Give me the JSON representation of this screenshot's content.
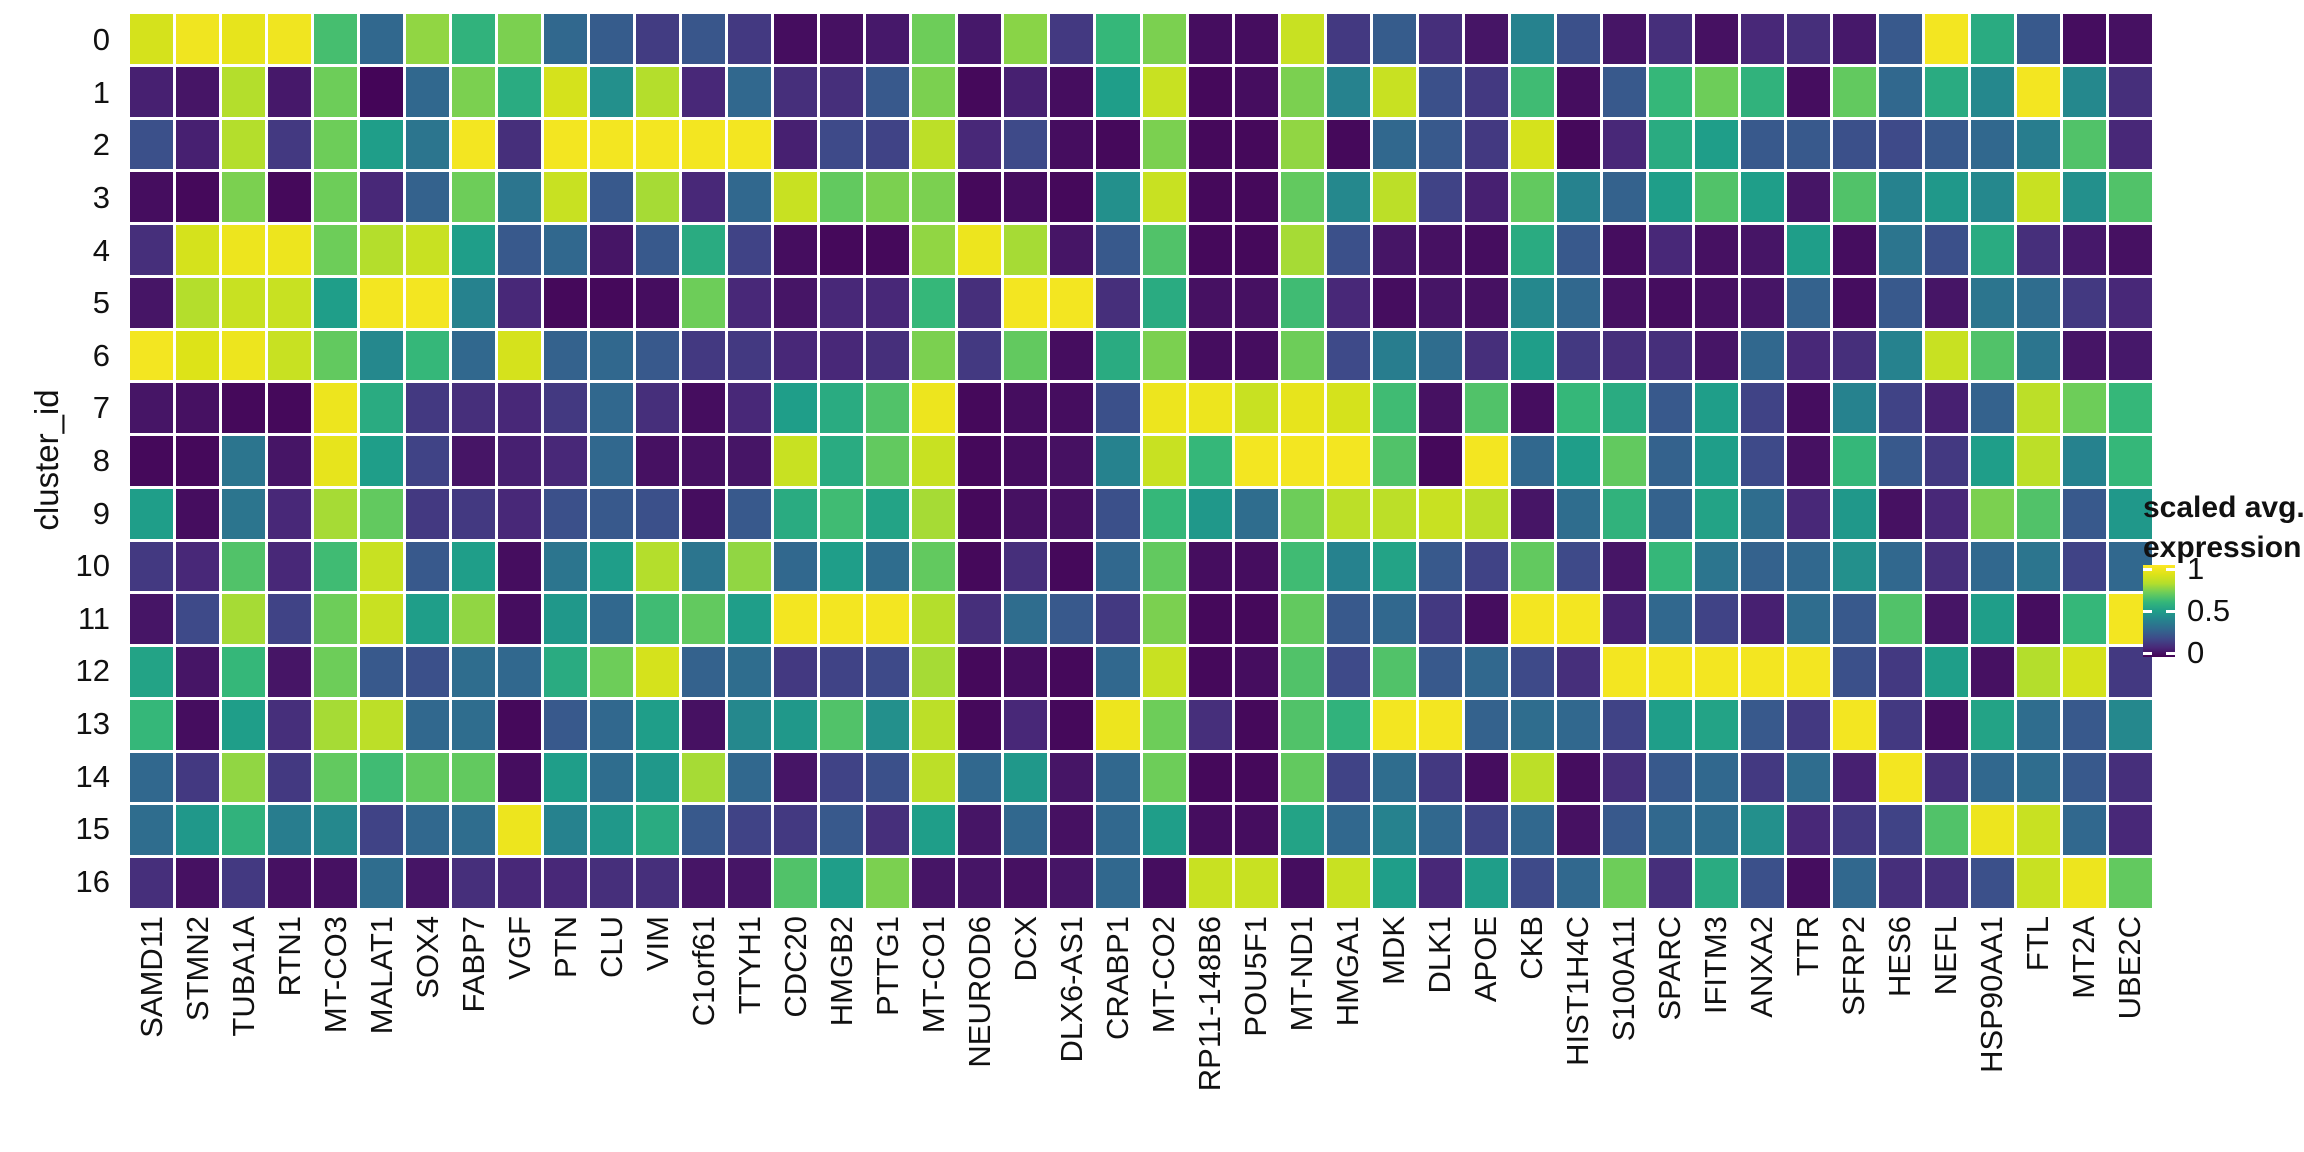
{
  "figure": {
    "background": "#ffffff",
    "text_color": "#111111"
  },
  "chart_data": {
    "type": "heatmap",
    "ylabel": "cluster_id",
    "rows": [
      "0",
      "1",
      "2",
      "3",
      "4",
      "5",
      "6",
      "7",
      "8",
      "9",
      "10",
      "11",
      "12",
      "13",
      "14",
      "15",
      "16"
    ],
    "columns": [
      "SAMD11",
      "STMN2",
      "TUBA1A",
      "RTN1",
      "MT-CO3",
      "MALAT1",
      "SOX4",
      "FABP7",
      "VGF",
      "PTN",
      "CLU",
      "VIM",
      "C1orf61",
      "TTYH1",
      "CDC20",
      "HMGB2",
      "PTTG1",
      "MT-CO1",
      "NEUROD6",
      "DCX",
      "DLX6-AS1",
      "CRABP1",
      "MT-CO2",
      "RP11-148B6",
      "POU5F1",
      "MT-ND1",
      "HMGA1",
      "MDK",
      "DLK1",
      "APOE",
      "CKB",
      "HIST1H4C",
      "S100A11",
      "SPARC",
      "IFITM3",
      "ANXA2",
      "TTR",
      "SFRP2",
      "HES6",
      "NEFL",
      "HSP90AA1",
      "FTL",
      "MT2A",
      "UBE2C"
    ],
    "value_range": [
      0,
      1
    ],
    "values": [
      [
        0.88,
        0.96,
        0.93,
        0.96,
        0.63,
        0.3,
        0.75,
        0.58,
        0.72,
        0.3,
        0.26,
        0.16,
        0.24,
        0.15,
        0.03,
        0.04,
        0.06,
        0.7,
        0.06,
        0.74,
        0.15,
        0.6,
        0.72,
        0.03,
        0.03,
        0.85,
        0.15,
        0.26,
        0.12,
        0.05,
        0.4,
        0.22,
        0.05,
        0.12,
        0.04,
        0.1,
        0.12,
        0.06,
        0.25,
        0.97,
        0.55,
        0.25,
        0.03,
        0.04
      ],
      [
        0.08,
        0.05,
        0.8,
        0.06,
        0.7,
        0.01,
        0.3,
        0.72,
        0.55,
        0.88,
        0.45,
        0.8,
        0.1,
        0.3,
        0.12,
        0.12,
        0.25,
        0.72,
        0.02,
        0.08,
        0.03,
        0.5,
        0.85,
        0.02,
        0.03,
        0.72,
        0.4,
        0.85,
        0.22,
        0.15,
        0.62,
        0.03,
        0.25,
        0.6,
        0.7,
        0.58,
        0.03,
        0.68,
        0.3,
        0.55,
        0.42,
        0.97,
        0.42,
        0.12
      ],
      [
        0.22,
        0.08,
        0.8,
        0.15,
        0.7,
        0.5,
        0.35,
        0.97,
        0.12,
        0.97,
        0.97,
        0.97,
        0.97,
        0.97,
        0.08,
        0.2,
        0.18,
        0.82,
        0.1,
        0.2,
        0.03,
        0.02,
        0.72,
        0.02,
        0.02,
        0.75,
        0.02,
        0.3,
        0.25,
        0.15,
        0.88,
        0.02,
        0.1,
        0.55,
        0.5,
        0.25,
        0.25,
        0.22,
        0.2,
        0.25,
        0.3,
        0.38,
        0.65,
        0.1
      ],
      [
        0.03,
        0.02,
        0.72,
        0.02,
        0.7,
        0.1,
        0.28,
        0.7,
        0.35,
        0.85,
        0.25,
        0.78,
        0.1,
        0.3,
        0.85,
        0.68,
        0.72,
        0.72,
        0.02,
        0.03,
        0.02,
        0.45,
        0.85,
        0.02,
        0.02,
        0.68,
        0.42,
        0.82,
        0.18,
        0.08,
        0.68,
        0.4,
        0.28,
        0.5,
        0.65,
        0.5,
        0.05,
        0.65,
        0.4,
        0.48,
        0.42,
        0.85,
        0.45,
        0.65
      ],
      [
        0.12,
        0.88,
        0.95,
        0.95,
        0.7,
        0.8,
        0.85,
        0.5,
        0.25,
        0.3,
        0.05,
        0.25,
        0.55,
        0.18,
        0.03,
        0.02,
        0.02,
        0.75,
        0.95,
        0.78,
        0.05,
        0.25,
        0.65,
        0.02,
        0.02,
        0.78,
        0.22,
        0.05,
        0.04,
        0.03,
        0.55,
        0.25,
        0.03,
        0.1,
        0.04,
        0.05,
        0.5,
        0.03,
        0.35,
        0.22,
        0.55,
        0.12,
        0.06,
        0.04
      ],
      [
        0.05,
        0.8,
        0.85,
        0.85,
        0.5,
        0.97,
        0.97,
        0.4,
        0.1,
        0.02,
        0.02,
        0.03,
        0.7,
        0.1,
        0.05,
        0.1,
        0.1,
        0.6,
        0.12,
        0.97,
        0.97,
        0.12,
        0.55,
        0.04,
        0.04,
        0.62,
        0.1,
        0.03,
        0.05,
        0.04,
        0.42,
        0.3,
        0.04,
        0.03,
        0.04,
        0.05,
        0.28,
        0.03,
        0.25,
        0.05,
        0.35,
        0.32,
        0.15,
        0.1
      ],
      [
        0.97,
        0.9,
        0.95,
        0.85,
        0.68,
        0.42,
        0.6,
        0.3,
        0.88,
        0.28,
        0.3,
        0.25,
        0.15,
        0.15,
        0.1,
        0.1,
        0.12,
        0.72,
        0.15,
        0.68,
        0.03,
        0.55,
        0.72,
        0.03,
        0.03,
        0.7,
        0.2,
        0.38,
        0.32,
        0.12,
        0.5,
        0.15,
        0.12,
        0.12,
        0.05,
        0.3,
        0.1,
        0.12,
        0.4,
        0.85,
        0.65,
        0.35,
        0.05,
        0.06
      ],
      [
        0.05,
        0.04,
        0.02,
        0.02,
        0.95,
        0.55,
        0.15,
        0.12,
        0.1,
        0.15,
        0.3,
        0.12,
        0.03,
        0.1,
        0.5,
        0.55,
        0.65,
        0.95,
        0.02,
        0.03,
        0.03,
        0.22,
        0.95,
        0.95,
        0.85,
        0.93,
        0.88,
        0.62,
        0.04,
        0.65,
        0.03,
        0.6,
        0.55,
        0.25,
        0.5,
        0.18,
        0.03,
        0.4,
        0.18,
        0.08,
        0.28,
        0.82,
        0.7,
        0.6
      ],
      [
        0.02,
        0.02,
        0.35,
        0.05,
        0.93,
        0.5,
        0.18,
        0.05,
        0.08,
        0.1,
        0.3,
        0.04,
        0.04,
        0.05,
        0.85,
        0.55,
        0.68,
        0.85,
        0.02,
        0.03,
        0.04,
        0.4,
        0.85,
        0.6,
        0.97,
        0.97,
        0.97,
        0.65,
        0.02,
        0.97,
        0.3,
        0.5,
        0.68,
        0.28,
        0.5,
        0.2,
        0.04,
        0.6,
        0.25,
        0.15,
        0.5,
        0.82,
        0.4,
        0.6
      ],
      [
        0.5,
        0.03,
        0.35,
        0.1,
        0.78,
        0.68,
        0.15,
        0.15,
        0.1,
        0.22,
        0.25,
        0.22,
        0.03,
        0.25,
        0.55,
        0.62,
        0.52,
        0.78,
        0.02,
        0.04,
        0.04,
        0.22,
        0.6,
        0.48,
        0.32,
        0.7,
        0.82,
        0.82,
        0.85,
        0.82,
        0.05,
        0.32,
        0.58,
        0.28,
        0.52,
        0.32,
        0.1,
        0.48,
        0.04,
        0.1,
        0.72,
        0.65,
        0.25,
        0.48
      ],
      [
        0.15,
        0.1,
        0.65,
        0.1,
        0.62,
        0.85,
        0.25,
        0.5,
        0.03,
        0.35,
        0.5,
        0.8,
        0.35,
        0.75,
        0.3,
        0.5,
        0.32,
        0.68,
        0.02,
        0.12,
        0.02,
        0.3,
        0.68,
        0.03,
        0.03,
        0.62,
        0.4,
        0.52,
        0.25,
        0.18,
        0.68,
        0.2,
        0.05,
        0.6,
        0.35,
        0.28,
        0.3,
        0.45,
        0.3,
        0.12,
        0.3,
        0.35,
        0.18,
        0.3
      ],
      [
        0.05,
        0.2,
        0.78,
        0.18,
        0.7,
        0.85,
        0.5,
        0.75,
        0.03,
        0.48,
        0.3,
        0.62,
        0.68,
        0.5,
        0.97,
        0.97,
        0.97,
        0.8,
        0.12,
        0.32,
        0.25,
        0.15,
        0.72,
        0.02,
        0.02,
        0.68,
        0.25,
        0.3,
        0.15,
        0.03,
        0.97,
        0.97,
        0.08,
        0.3,
        0.18,
        0.08,
        0.32,
        0.25,
        0.65,
        0.05,
        0.5,
        0.03,
        0.6,
        0.97
      ],
      [
        0.52,
        0.05,
        0.6,
        0.05,
        0.7,
        0.25,
        0.22,
        0.32,
        0.3,
        0.55,
        0.7,
        0.88,
        0.28,
        0.32,
        0.15,
        0.18,
        0.2,
        0.78,
        0.02,
        0.03,
        0.02,
        0.3,
        0.85,
        0.02,
        0.03,
        0.65,
        0.2,
        0.65,
        0.25,
        0.3,
        0.2,
        0.12,
        0.97,
        0.97,
        0.97,
        0.97,
        0.97,
        0.22,
        0.15,
        0.5,
        0.04,
        0.8,
        0.88,
        0.15
      ],
      [
        0.6,
        0.03,
        0.5,
        0.12,
        0.78,
        0.82,
        0.3,
        0.32,
        0.02,
        0.25,
        0.3,
        0.5,
        0.04,
        0.42,
        0.48,
        0.65,
        0.45,
        0.82,
        0.02,
        0.1,
        0.02,
        0.95,
        0.7,
        0.12,
        0.02,
        0.65,
        0.58,
        0.97,
        0.97,
        0.28,
        0.32,
        0.3,
        0.18,
        0.5,
        0.52,
        0.25,
        0.15,
        0.97,
        0.15,
        0.03,
        0.52,
        0.32,
        0.25,
        0.42
      ],
      [
        0.3,
        0.15,
        0.75,
        0.15,
        0.68,
        0.62,
        0.68,
        0.68,
        0.03,
        0.5,
        0.32,
        0.48,
        0.78,
        0.3,
        0.05,
        0.18,
        0.22,
        0.82,
        0.3,
        0.48,
        0.05,
        0.3,
        0.7,
        0.02,
        0.02,
        0.68,
        0.18,
        0.32,
        0.15,
        0.03,
        0.82,
        0.03,
        0.12,
        0.25,
        0.3,
        0.15,
        0.32,
        0.08,
        0.97,
        0.12,
        0.3,
        0.32,
        0.25,
        0.12
      ],
      [
        0.32,
        0.48,
        0.58,
        0.38,
        0.42,
        0.18,
        0.3,
        0.32,
        0.95,
        0.4,
        0.48,
        0.55,
        0.25,
        0.18,
        0.15,
        0.25,
        0.12,
        0.5,
        0.05,
        0.3,
        0.04,
        0.3,
        0.5,
        0.03,
        0.03,
        0.52,
        0.3,
        0.4,
        0.3,
        0.18,
        0.3,
        0.04,
        0.25,
        0.3,
        0.32,
        0.45,
        0.1,
        0.15,
        0.18,
        0.65,
        0.95,
        0.85,
        0.3,
        0.1
      ],
      [
        0.12,
        0.04,
        0.15,
        0.04,
        0.04,
        0.32,
        0.05,
        0.12,
        0.1,
        0.1,
        0.12,
        0.12,
        0.05,
        0.05,
        0.65,
        0.5,
        0.72,
        0.05,
        0.05,
        0.04,
        0.05,
        0.3,
        0.03,
        0.85,
        0.85,
        0.03,
        0.85,
        0.5,
        0.1,
        0.5,
        0.2,
        0.3,
        0.7,
        0.12,
        0.55,
        0.22,
        0.03,
        0.3,
        0.12,
        0.12,
        0.22,
        0.85,
        0.95,
        0.68
      ]
    ],
    "colormap": {
      "name": "viridis",
      "stops": [
        [
          0.0,
          "#440154"
        ],
        [
          0.1,
          "#482878"
        ],
        [
          0.2,
          "#3E4A89"
        ],
        [
          0.3,
          "#31688E"
        ],
        [
          0.4,
          "#26828E"
        ],
        [
          0.5,
          "#1F9E89"
        ],
        [
          0.6,
          "#35B779"
        ],
        [
          0.7,
          "#6DCD59"
        ],
        [
          0.8,
          "#B4DE2C"
        ],
        [
          0.9,
          "#DDE318"
        ],
        [
          1.0,
          "#FDE725"
        ]
      ]
    },
    "legend": {
      "title_lines": [
        "scaled avg.",
        "expression"
      ],
      "position": "right",
      "ticks": [
        {
          "label": "1",
          "value": 1.0
        },
        {
          "label": "0.5",
          "value": 0.5
        },
        {
          "label": "0",
          "value": 0.0
        }
      ]
    },
    "grid": false
  }
}
